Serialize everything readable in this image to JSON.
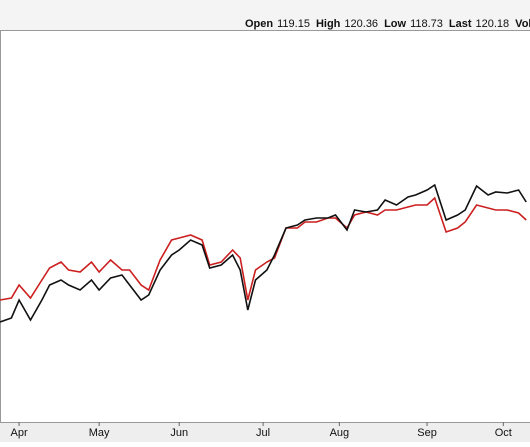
{
  "header": {
    "quote": [
      {
        "label": "Open",
        "value": "119.15"
      },
      {
        "label": "High",
        "value": "120.36"
      },
      {
        "label": "Low",
        "value": "118.73"
      },
      {
        "label": "Last",
        "value": "120.18"
      },
      {
        "label": "Vol"
      }
    ]
  },
  "chart_data": {
    "type": "line",
    "x": [
      0,
      3,
      5,
      8,
      11,
      13,
      16,
      18,
      21,
      24,
      26,
      29,
      32,
      34,
      37,
      39,
      42,
      45,
      47,
      50,
      53,
      55,
      58,
      61,
      63,
      65,
      67,
      70,
      72,
      75,
      78,
      80,
      83,
      86,
      88,
      91,
      93,
      96,
      99,
      101,
      104,
      107,
      109,
      112,
      114,
      117,
      120,
      122,
      125,
      128,
      130,
      133,
      136,
      138
    ],
    "xlim": [
      0,
      139
    ],
    "xticks": [
      {
        "value": 5,
        "label": "Apr"
      },
      {
        "value": 26,
        "label": "May"
      },
      {
        "value": 47,
        "label": "Jun"
      },
      {
        "value": 69,
        "label": "Jul"
      },
      {
        "value": 89,
        "label": "Aug"
      },
      {
        "value": 112,
        "label": "Sep"
      },
      {
        "value": 132,
        "label": "Oct"
      }
    ],
    "ylim": [
      0,
      392
    ],
    "series": [
      {
        "color": "#cc1f1f",
        "values": [
          122,
          124,
          137,
          124,
          142,
          154,
          160,
          152,
          150,
          160,
          150,
          162,
          152,
          152,
          137,
          132,
          162,
          182,
          184,
          187,
          182,
          157,
          160,
          172,
          164,
          122,
          152,
          160,
          164,
          194,
          194,
          200,
          200,
          204,
          204,
          194,
          207,
          210,
          207,
          212,
          212,
          215,
          217,
          217,
          224,
          190,
          194,
          200,
          217,
          214,
          212,
          212,
          209,
          202
        ]
      },
      {
        "color": "#111111",
        "values": [
          100,
          104,
          122,
          102,
          122,
          137,
          142,
          137,
          132,
          142,
          132,
          144,
          147,
          137,
          122,
          127,
          152,
          167,
          172,
          182,
          177,
          154,
          157,
          167,
          152,
          112,
          142,
          152,
          167,
          194,
          197,
          202,
          204,
          204,
          207,
          192,
          212,
          210,
          212,
          222,
          217,
          225,
          227,
          232,
          237,
          202,
          207,
          212,
          236,
          227,
          230,
          229,
          232,
          220
        ]
      }
    ]
  }
}
